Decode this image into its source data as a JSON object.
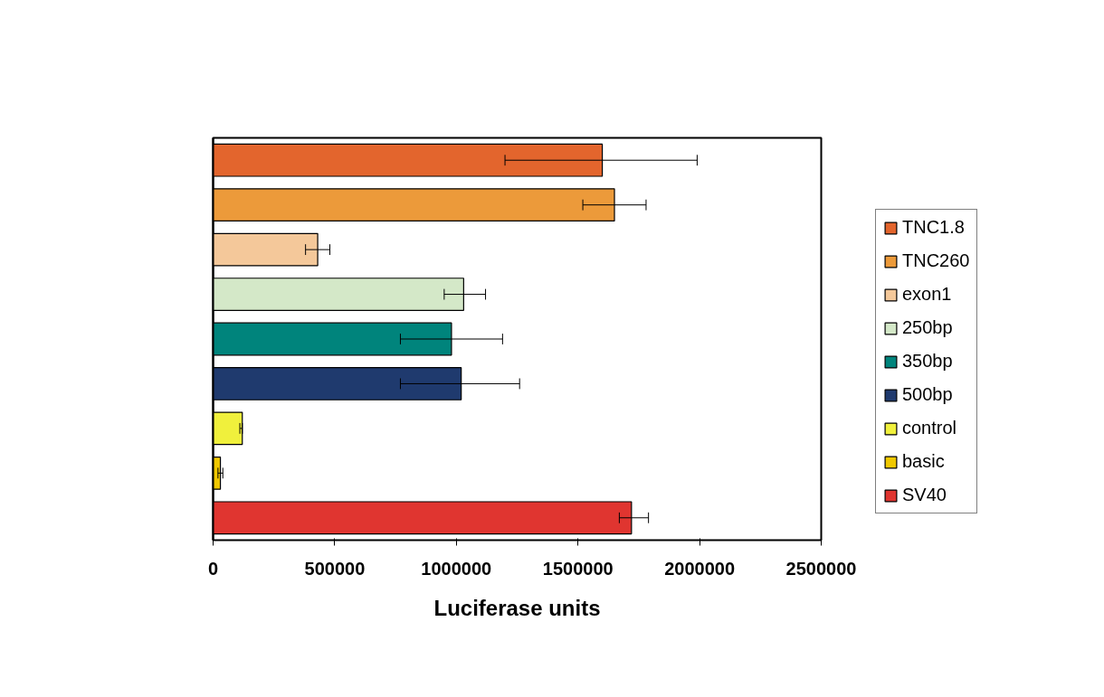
{
  "chart_data": {
    "type": "bar",
    "orientation": "horizontal",
    "xlabel": "Luciferase units",
    "categories": [
      null,
      null,
      null,
      null,
      null,
      null,
      null,
      null,
      null
    ],
    "series": [
      {
        "name": "TNC1.8",
        "color": "#e3652d",
        "values": [
          1600000,
          null,
          null,
          null,
          null,
          null,
          null,
          null,
          null
        ],
        "errors": [
          [
            1200000,
            1990000
          ],
          null,
          null,
          null,
          null,
          null,
          null,
          null,
          null
        ]
      },
      {
        "name": "TNC260",
        "color": "#ec9a3a",
        "values": [
          null,
          1650000,
          null,
          null,
          null,
          null,
          null,
          null,
          null
        ],
        "errors": [
          null,
          [
            1520000,
            1780000
          ],
          null,
          null,
          null,
          null,
          null,
          null,
          null
        ]
      },
      {
        "name": "exon1",
        "color": "#f4c89a",
        "values": [
          null,
          null,
          430000,
          null,
          null,
          null,
          null,
          null,
          null
        ],
        "errors": [
          null,
          null,
          [
            380000,
            480000
          ],
          null,
          null,
          null,
          null,
          null,
          null
        ]
      },
      {
        "name": "250bp",
        "color": "#d4e8c8",
        "values": [
          null,
          null,
          null,
          1030000,
          null,
          null,
          null,
          null,
          null
        ],
        "errors": [
          null,
          null,
          null,
          [
            950000,
            1120000
          ],
          null,
          null,
          null,
          null,
          null
        ]
      },
      {
        "name": "350bp",
        "color": "#00847c",
        "values": [
          null,
          null,
          null,
          null,
          980000,
          null,
          null,
          null,
          null
        ],
        "errors": [
          null,
          null,
          null,
          null,
          [
            770000,
            1190000
          ],
          null,
          null,
          null,
          null
        ]
      },
      {
        "name": "500bp",
        "color": "#1f3a6e",
        "values": [
          null,
          null,
          null,
          null,
          null,
          1020000,
          null,
          null,
          null
        ],
        "errors": [
          null,
          null,
          null,
          null,
          null,
          [
            770000,
            1260000
          ],
          null,
          null,
          null
        ]
      },
      {
        "name": "control",
        "color": "#f0f03c",
        "values": [
          null,
          null,
          null,
          null,
          null,
          null,
          120000,
          null,
          null
        ],
        "errors": [
          null,
          null,
          null,
          null,
          null,
          null,
          [
            110000,
            120000
          ],
          null,
          null
        ]
      },
      {
        "name": "basic",
        "color": "#f0c800",
        "values": [
          null,
          null,
          null,
          null,
          null,
          null,
          null,
          30000,
          null
        ],
        "errors": [
          null,
          null,
          null,
          null,
          null,
          null,
          null,
          [
            20000,
            40000
          ],
          null
        ]
      },
      {
        "name": "SV40",
        "color": "#e03530",
        "values": [
          null,
          null,
          null,
          null,
          null,
          null,
          null,
          null,
          1720000
        ],
        "errors": [
          null,
          null,
          null,
          null,
          null,
          null,
          null,
          null,
          [
            1670000,
            1790000
          ]
        ]
      }
    ],
    "xlim": [
      0,
      2500000
    ],
    "xticks": [
      0,
      500000,
      1000000,
      1500000,
      2000000,
      2500000
    ],
    "tick_labels": "x",
    "legend": "right",
    "grid": false
  }
}
